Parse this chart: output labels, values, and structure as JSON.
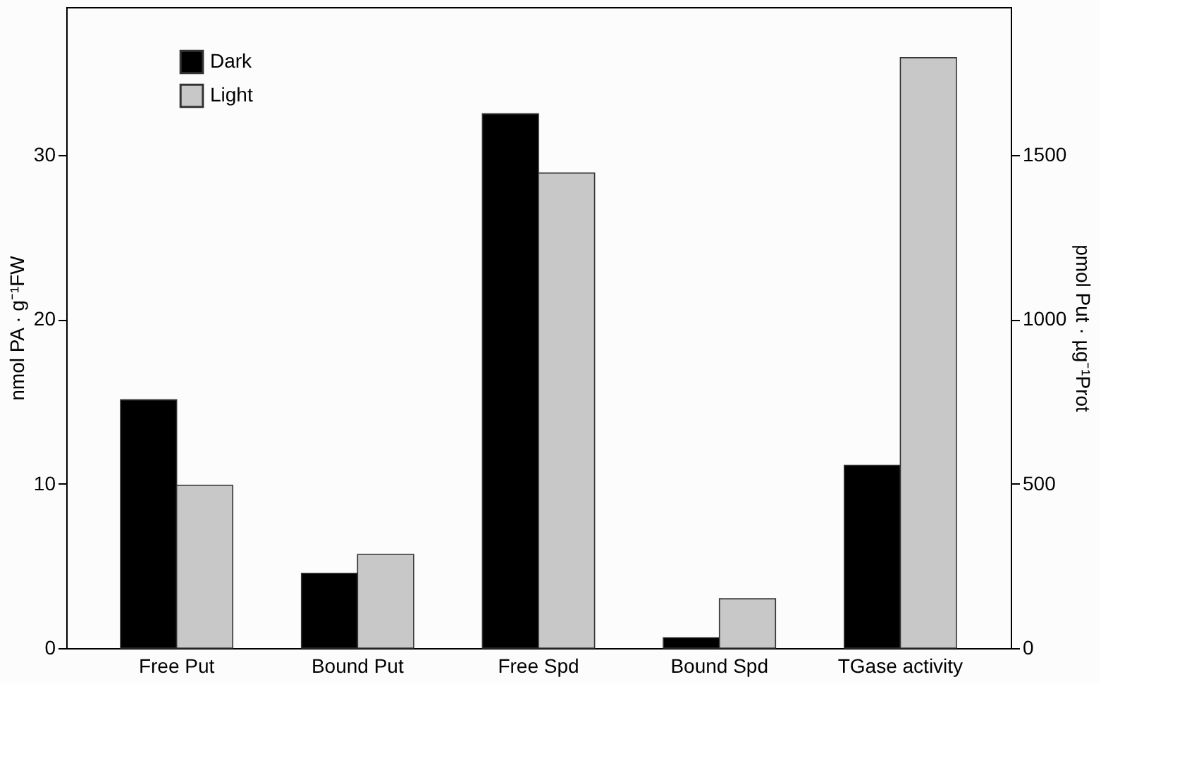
{
  "chart_data": {
    "type": "bar",
    "categories": [
      "Free Put",
      "Bound Put",
      "Free Spd",
      "Bound Spd",
      "TGase activity"
    ],
    "series": [
      {
        "name": "Dark",
        "color": "#000000",
        "values": [
          15.1,
          4.55,
          32.5,
          0.63,
          null
        ]
      },
      {
        "name": "Light",
        "color": "#c8c8c8",
        "values": [
          9.9,
          5.7,
          28.9,
          3.0,
          null
        ]
      },
      {
        "color": "#000000",
        "axis": "y2",
        "values": [
          null,
          null,
          null,
          null,
          556
        ]
      },
      {
        "color": "#c8c8c8",
        "axis": "y2",
        "values": [
          null,
          null,
          null,
          null,
          1796
        ]
      }
    ],
    "ylabel": "nmol PA · g⁻¹FW",
    "y2label": "pmol Put · µg⁻¹Prot",
    "ylim": [
      0,
      39
    ],
    "yticks": [
      0,
      10,
      20,
      30
    ],
    "y2lim": [
      0,
      1950
    ],
    "y2ticks": [
      0,
      500,
      1000,
      1500
    ],
    "grid": false,
    "legend": "top left"
  }
}
